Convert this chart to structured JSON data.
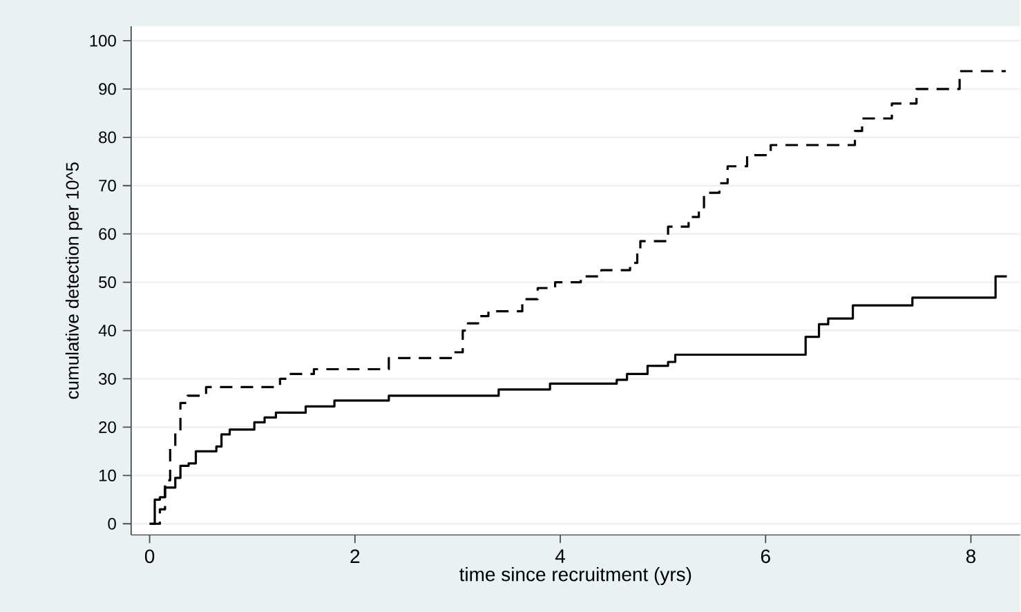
{
  "chart_data": {
    "type": "step",
    "xlabel": "time since recruitment (yrs)",
    "ylabel": "cumulative detection per 10^5",
    "xlim": [
      -0.18,
      8.48
    ],
    "ylim": [
      -2.3,
      103
    ],
    "xticks": [
      0,
      2,
      4,
      6,
      8
    ],
    "yticks": [
      0,
      10,
      20,
      30,
      40,
      50,
      60,
      70,
      80,
      90,
      100
    ],
    "grid": "y",
    "series": [
      {
        "color": "#000000",
        "line_style": "solid",
        "x": [
          0,
          0.05,
          0.1,
          0.15,
          0.25,
          0.3,
          0.38,
          0.45,
          0.65,
          0.7,
          0.78,
          1.02,
          1.12,
          1.23,
          1.52,
          1.8,
          2.33,
          3.4,
          3.9,
          4.55,
          4.65,
          4.85,
          5.05,
          5.12,
          6.39,
          6.52,
          6.61,
          6.85,
          7.43,
          8.24,
          8.35
        ],
        "values": [
          0,
          5,
          5.5,
          7.5,
          9.5,
          12,
          12.5,
          15,
          16,
          18.5,
          19.5,
          21,
          22,
          23,
          24.3,
          25.5,
          26.5,
          27.8,
          29,
          29.8,
          31,
          32.7,
          33.5,
          35,
          38.7,
          41.3,
          42.5,
          45.2,
          46.8,
          51.2,
          51.2
        ]
      },
      {
        "color": "#000000",
        "line_style": "dashed",
        "x": [
          0,
          0.08,
          0.1,
          0.15,
          0.2,
          0.25,
          0.3,
          0.37,
          0.55,
          1.27,
          1.35,
          1.6,
          2.33,
          2.95,
          3.05,
          3.1,
          3.2,
          3.3,
          3.63,
          3.78,
          3.95,
          4.2,
          4.4,
          4.68,
          4.75,
          4.78,
          5.05,
          5.25,
          5.35,
          5.4,
          5.55,
          5.63,
          5.82,
          6.05,
          6.87,
          6.94,
          7.23,
          7.47,
          7.89,
          8.34
        ],
        "values": [
          0,
          0,
          3,
          9,
          16,
          19,
          25,
          26.5,
          28.3,
          30,
          31,
          32,
          34.3,
          35.5,
          40,
          41.5,
          43,
          44,
          46.5,
          48.8,
          50,
          51.2,
          52.5,
          54,
          56,
          58.5,
          61.5,
          63.5,
          65.5,
          68.5,
          70.5,
          74,
          76.3,
          78.4,
          81.3,
          83.9,
          87,
          90,
          93.7,
          93.7
        ]
      }
    ]
  }
}
